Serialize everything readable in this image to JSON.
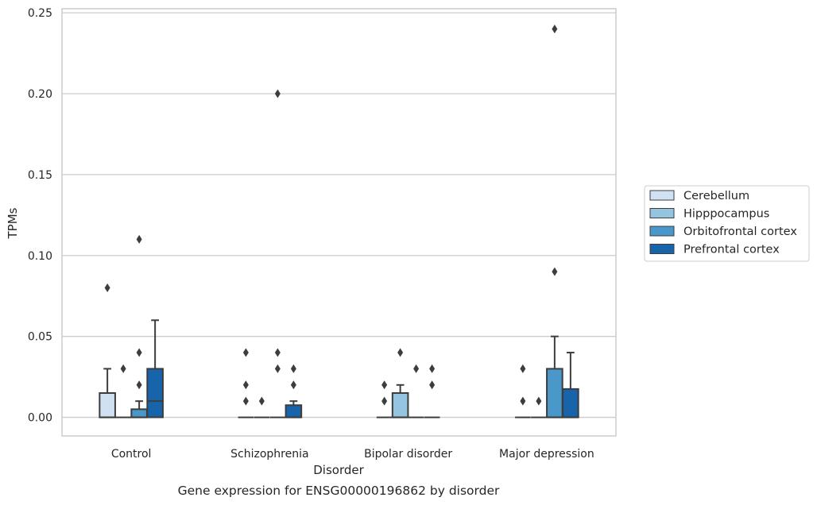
{
  "chart_data": {
    "type": "box",
    "title": "",
    "caption": "Gene expression for ENSG00000196862 by disorder",
    "xlabel": "Disorder",
    "ylabel": "TPMs",
    "ylim": [
      -0.0115,
      0.2525
    ],
    "yticks": [
      0.0,
      0.05,
      0.1,
      0.15,
      0.2,
      0.25
    ],
    "ytick_labels": [
      "0.00",
      "0.05",
      "0.10",
      "0.15",
      "0.20",
      "0.25"
    ],
    "grid": "horizontal",
    "legend_position": "right",
    "categories": [
      "Control",
      "Schizophrenia",
      "Bipolar disorder",
      "Major depression"
    ],
    "series": [
      {
        "name": "Cerebellum",
        "color": "#d0e1f2",
        "boxes": [
          {
            "q1": 0,
            "median": 0,
            "q3": 0.015,
            "whisker_low": 0,
            "whisker_high": 0.03,
            "outliers": [
              0.08
            ]
          },
          {
            "q1": 0,
            "median": 0,
            "q3": 0,
            "whisker_low": 0,
            "whisker_high": 0,
            "outliers": [
              0.01,
              0.02,
              0.04
            ]
          },
          {
            "q1": 0,
            "median": 0,
            "q3": 0,
            "whisker_low": 0,
            "whisker_high": 0,
            "outliers": [
              0.01,
              0.02
            ]
          },
          {
            "q1": 0,
            "median": 0,
            "q3": 0,
            "whisker_low": 0,
            "whisker_high": 0,
            "outliers": [
              0.01,
              0.03
            ]
          }
        ]
      },
      {
        "name": "Hipppocampus",
        "color": "#94c4df",
        "boxes": [
          {
            "q1": 0,
            "median": 0,
            "q3": 0,
            "whisker_low": 0,
            "whisker_high": 0,
            "outliers": [
              0.03
            ]
          },
          {
            "q1": 0,
            "median": 0,
            "q3": 0,
            "whisker_low": 0,
            "whisker_high": 0,
            "outliers": [
              0.01
            ]
          },
          {
            "q1": 0,
            "median": 0,
            "q3": 0.015,
            "whisker_low": 0,
            "whisker_high": 0.02,
            "outliers": [
              0.04
            ]
          },
          {
            "q1": 0,
            "median": 0,
            "q3": 0,
            "whisker_low": 0,
            "whisker_high": 0,
            "outliers": [
              0.01
            ]
          }
        ]
      },
      {
        "name": "Orbitofrontal cortex",
        "color": "#4a98c9",
        "boxes": [
          {
            "q1": 0,
            "median": 0,
            "q3": 0.005,
            "whisker_low": 0,
            "whisker_high": 0.01,
            "outliers": [
              0.02,
              0.04,
              0.11
            ]
          },
          {
            "q1": 0,
            "median": 0,
            "q3": 0,
            "whisker_low": 0,
            "whisker_high": 0,
            "outliers": [
              0.03,
              0.04,
              0.2
            ]
          },
          {
            "q1": 0,
            "median": 0,
            "q3": 0,
            "whisker_low": 0,
            "whisker_high": 0,
            "outliers": [
              0.03
            ]
          },
          {
            "q1": 0,
            "median": 0,
            "q3": 0.03,
            "whisker_low": 0,
            "whisker_high": 0.05,
            "outliers": [
              0.09,
              0.24
            ]
          }
        ]
      },
      {
        "name": "Prefrontal cortex",
        "color": "#1764ab",
        "boxes": [
          {
            "q1": 0,
            "median": 0.01,
            "q3": 0.03,
            "whisker_low": 0,
            "whisker_high": 0.06,
            "outliers": []
          },
          {
            "q1": 0,
            "median": 0,
            "q3": 0.0075,
            "whisker_low": 0,
            "whisker_high": 0.01,
            "outliers": [
              0.02,
              0.03
            ]
          },
          {
            "q1": 0,
            "median": 0,
            "q3": 0,
            "whisker_low": 0,
            "whisker_high": 0,
            "outliers": [
              0.02,
              0.03
            ]
          },
          {
            "q1": 0,
            "median": 0,
            "q3": 0.0175,
            "whisker_low": 0,
            "whisker_high": 0.04,
            "outliers": []
          }
        ]
      }
    ]
  }
}
